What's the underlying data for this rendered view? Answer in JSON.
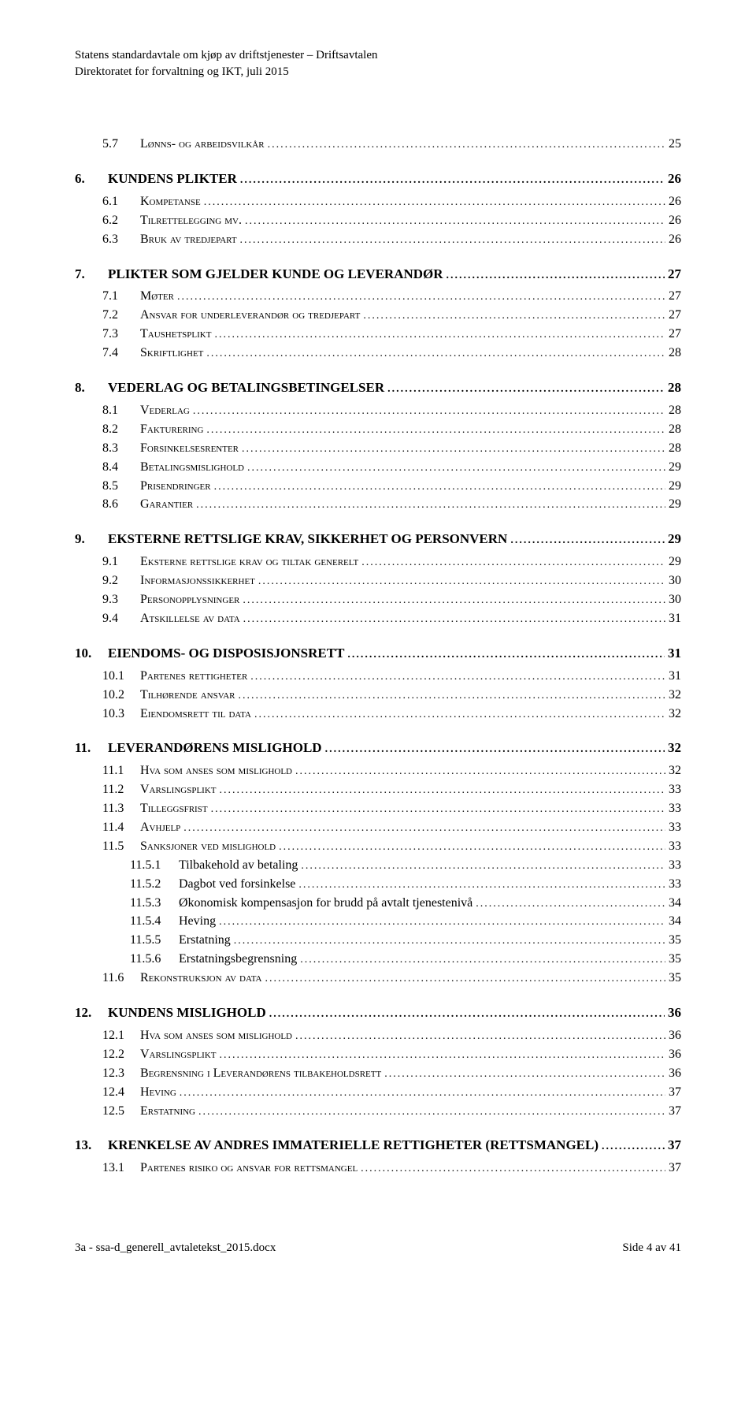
{
  "header": {
    "line1": "Statens standardavtale om kjøp av driftstjenester – Driftsavtalen",
    "line2": "Direktoratet for forvaltning og IKT, juli 2015"
  },
  "footer": {
    "left": "3a - ssa-d_generell_avtaletekst_2015.docx",
    "right": "Side 4 av 41"
  },
  "toc": [
    {
      "level": 2,
      "num": "5.7",
      "label": "Lønns- og arbeidsvilkår",
      "page": "25",
      "sc": true
    },
    {
      "level": 1,
      "num": "6.",
      "label": "KUNDENS PLIKTER",
      "page": "26"
    },
    {
      "level": 2,
      "num": "6.1",
      "label": "Kompetanse",
      "page": "26",
      "sc": true
    },
    {
      "level": 2,
      "num": "6.2",
      "label": "Tilrettelegging mv.",
      "page": "26",
      "sc": true
    },
    {
      "level": 2,
      "num": "6.3",
      "label": "Bruk av tredjepart",
      "page": "26",
      "sc": true
    },
    {
      "level": 1,
      "num": "7.",
      "label": "PLIKTER SOM GJELDER KUNDE OG LEVERANDØR",
      "page": "27"
    },
    {
      "level": 2,
      "num": "7.1",
      "label": "Møter",
      "page": "27",
      "sc": true
    },
    {
      "level": 2,
      "num": "7.2",
      "label": "Ansvar for underleverandør og tredjepart",
      "page": "27",
      "sc": true
    },
    {
      "level": 2,
      "num": "7.3",
      "label": "Taushetsplikt",
      "page": "27",
      "sc": true
    },
    {
      "level": 2,
      "num": "7.4",
      "label": "Skriftlighet",
      "page": "28",
      "sc": true
    },
    {
      "level": 1,
      "num": "8.",
      "label": "VEDERLAG OG BETALINGSBETINGELSER",
      "page": "28"
    },
    {
      "level": 2,
      "num": "8.1",
      "label": "Vederlag",
      "page": "28",
      "sc": true
    },
    {
      "level": 2,
      "num": "8.2",
      "label": "Fakturering",
      "page": "28",
      "sc": true
    },
    {
      "level": 2,
      "num": "8.3",
      "label": "Forsinkelsesrenter",
      "page": "28",
      "sc": true
    },
    {
      "level": 2,
      "num": "8.4",
      "label": "Betalingsmislighold",
      "page": "29",
      "sc": true
    },
    {
      "level": 2,
      "num": "8.5",
      "label": "Prisendringer",
      "page": "29",
      "sc": true
    },
    {
      "level": 2,
      "num": "8.6",
      "label": "Garantier",
      "page": "29",
      "sc": true
    },
    {
      "level": 1,
      "num": "9.",
      "label": "EKSTERNE RETTSLIGE KRAV, SIKKERHET OG PERSONVERN",
      "page": "29"
    },
    {
      "level": 2,
      "num": "9.1",
      "label": "Eksterne rettslige krav og tiltak generelt",
      "page": "29",
      "sc": true
    },
    {
      "level": 2,
      "num": "9.2",
      "label": "Informasjonssikkerhet",
      "page": "30",
      "sc": true
    },
    {
      "level": 2,
      "num": "9.3",
      "label": "Personopplysninger",
      "page": "30",
      "sc": true
    },
    {
      "level": 2,
      "num": "9.4",
      "label": "Atskillelse av data",
      "page": "31",
      "sc": true
    },
    {
      "level": 1,
      "num": "10.",
      "label": "EIENDOMS- OG DISPOSISJONSRETT",
      "page": "31"
    },
    {
      "level": 2,
      "num": "10.1",
      "label": "Partenes rettigheter",
      "page": "31",
      "sc": true
    },
    {
      "level": 2,
      "num": "10.2",
      "label": "Tilhørende ansvar",
      "page": "32",
      "sc": true
    },
    {
      "level": 2,
      "num": "10.3",
      "label": "Eiendomsrett til data",
      "page": "32",
      "sc": true
    },
    {
      "level": 1,
      "num": "11.",
      "label": "LEVERANDØRENS MISLIGHOLD",
      "page": "32"
    },
    {
      "level": 2,
      "num": "11.1",
      "label": "Hva som anses som mislighold",
      "page": "32",
      "sc": true
    },
    {
      "level": 2,
      "num": "11.2",
      "label": "Varslingsplikt",
      "page": "33",
      "sc": true
    },
    {
      "level": 2,
      "num": "11.3",
      "label": "Tilleggsfrist",
      "page": "33",
      "sc": true
    },
    {
      "level": 2,
      "num": "11.4",
      "label": "Avhjelp",
      "page": "33",
      "sc": true
    },
    {
      "level": 2,
      "num": "11.5",
      "label": "Sanksjoner ved mislighold",
      "page": "33",
      "sc": true
    },
    {
      "level": 3,
      "num": "11.5.1",
      "label": "Tilbakehold av betaling",
      "page": "33"
    },
    {
      "level": 3,
      "num": "11.5.2",
      "label": "Dagbot ved forsinkelse",
      "page": "33"
    },
    {
      "level": 3,
      "num": "11.5.3",
      "label": "Økonomisk kompensasjon for brudd på avtalt tjenestenivå",
      "page": "34"
    },
    {
      "level": 3,
      "num": "11.5.4",
      "label": "Heving",
      "page": "34"
    },
    {
      "level": 3,
      "num": "11.5.5",
      "label": "Erstatning",
      "page": "35"
    },
    {
      "level": 3,
      "num": "11.5.6",
      "label": "Erstatningsbegrensning",
      "page": "35"
    },
    {
      "level": 2,
      "num": "11.6",
      "label": "Rekonstruksjon av data",
      "page": "35",
      "sc": true
    },
    {
      "level": 1,
      "num": "12.",
      "label": "KUNDENS MISLIGHOLD",
      "page": "36"
    },
    {
      "level": 2,
      "num": "12.1",
      "label": "Hva som anses som mislighold",
      "page": "36",
      "sc": true
    },
    {
      "level": 2,
      "num": "12.2",
      "label": "Varslingsplikt",
      "page": "36",
      "sc": true
    },
    {
      "level": 2,
      "num": "12.3",
      "label": "Begrensning i Leverandørens tilbakeholdsrett",
      "page": "36",
      "sc": true
    },
    {
      "level": 2,
      "num": "12.4",
      "label": "Heving",
      "page": "37",
      "sc": true
    },
    {
      "level": 2,
      "num": "12.5",
      "label": "Erstatning",
      "page": "37",
      "sc": true
    },
    {
      "level": 1,
      "num": "13.",
      "label": "KRENKELSE AV ANDRES IMMATERIELLE RETTIGHETER (RETTSMANGEL)",
      "page": "37"
    },
    {
      "level": 2,
      "num": "13.1",
      "label": "Partenes risiko og ansvar for rettsmangel",
      "page": "37",
      "sc": true
    }
  ]
}
